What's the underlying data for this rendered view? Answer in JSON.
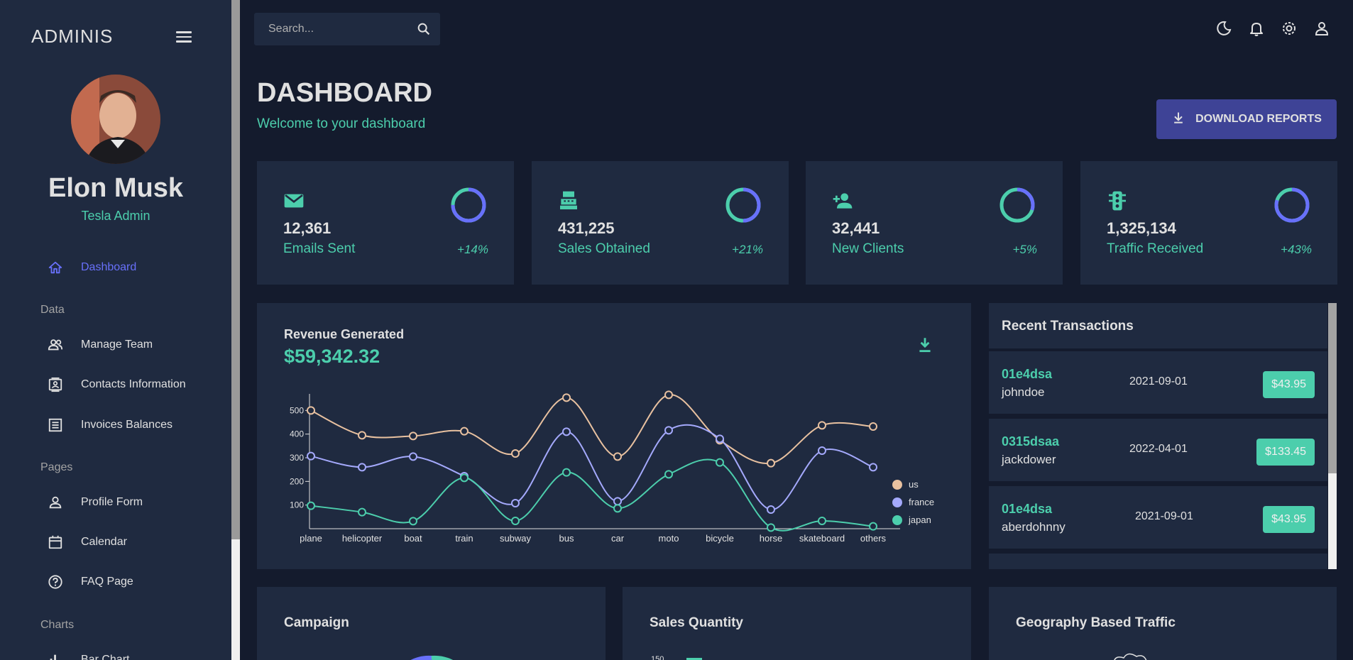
{
  "brand": "ADMINIS",
  "user": {
    "name": "Elon Musk",
    "role": "Tesla Admin"
  },
  "nav": {
    "dashboard": "Dashboard",
    "section_data": "Data",
    "manage_team": "Manage Team",
    "contacts": "Contacts Information",
    "invoices": "Invoices Balances",
    "section_pages": "Pages",
    "profile_form": "Profile Form",
    "calendar": "Calendar",
    "faq": "FAQ Page",
    "section_charts": "Charts",
    "bar_chart": "Bar Chart"
  },
  "search": {
    "placeholder": "Search..."
  },
  "header": {
    "title": "DASHBOARD",
    "subtitle": "Welcome to your dashboard",
    "download_label": "DOWNLOAD REPORTS"
  },
  "stats": [
    {
      "value": "12,361",
      "label": "Emails Sent",
      "increase": "+14%",
      "progress": 0.75,
      "icon": "email-icon"
    },
    {
      "value": "431,225",
      "label": "Sales Obtained",
      "increase": "+21%",
      "progress": 0.5,
      "icon": "point-of-sale-icon"
    },
    {
      "value": "32,441",
      "label": "New Clients",
      "increase": "+5%",
      "progress": 0.3,
      "icon": "person-add-icon"
    },
    {
      "value": "1,325,134",
      "label": "Traffic Received",
      "increase": "+43%",
      "progress": 0.8,
      "icon": "traffic-icon"
    }
  ],
  "revenue": {
    "title": "Revenue Generated",
    "value": "$59,342.32"
  },
  "chart_data": {
    "type": "line",
    "x": [
      "plane",
      "helicopter",
      "boat",
      "train",
      "subway",
      "bus",
      "car",
      "moto",
      "bicycle",
      "horse",
      "skateboard",
      "others"
    ],
    "ylim": [
      0,
      600
    ],
    "yticks": [
      100,
      200,
      300,
      400,
      500
    ],
    "legend_position": "right",
    "series": [
      {
        "name": "us",
        "color": "#e8c1a0",
        "values": [
          500,
          395,
          392,
          412,
          318,
          554,
          305,
          566,
          374,
          277,
          437,
          432
        ]
      },
      {
        "name": "france",
        "color": "#a4a9fc",
        "values": [
          307,
          260,
          305,
          222,
          108,
          410,
          116,
          416,
          380,
          81,
          330,
          260
        ]
      },
      {
        "name": "japan",
        "color": "#4cceac",
        "values": [
          97,
          70,
          32,
          215,
          33,
          238,
          86,
          230,
          280,
          5,
          33,
          10
        ]
      }
    ]
  },
  "transactions": {
    "title": "Recent Transactions",
    "rows": [
      {
        "id": "01e4dsa",
        "user": "johndoe",
        "date": "2021-09-01",
        "cost": "$43.95"
      },
      {
        "id": "0315dsaa",
        "user": "jackdower",
        "date": "2022-04-01",
        "cost": "$133.45"
      },
      {
        "id": "01e4dsa",
        "user": "aberdohnny",
        "date": "2021-09-01",
        "cost": "$43.95"
      }
    ]
  },
  "bottom": {
    "campaign": "Campaign",
    "sales_quantity": "Sales Quantity",
    "geography": "Geography Based Traffic",
    "sales_tick": "150"
  },
  "colors": {
    "accent": "#4cceac",
    "primary": "#141b2d",
    "panel": "#1f2a40",
    "blue": "#6870fa",
    "button": "#3e4396"
  }
}
